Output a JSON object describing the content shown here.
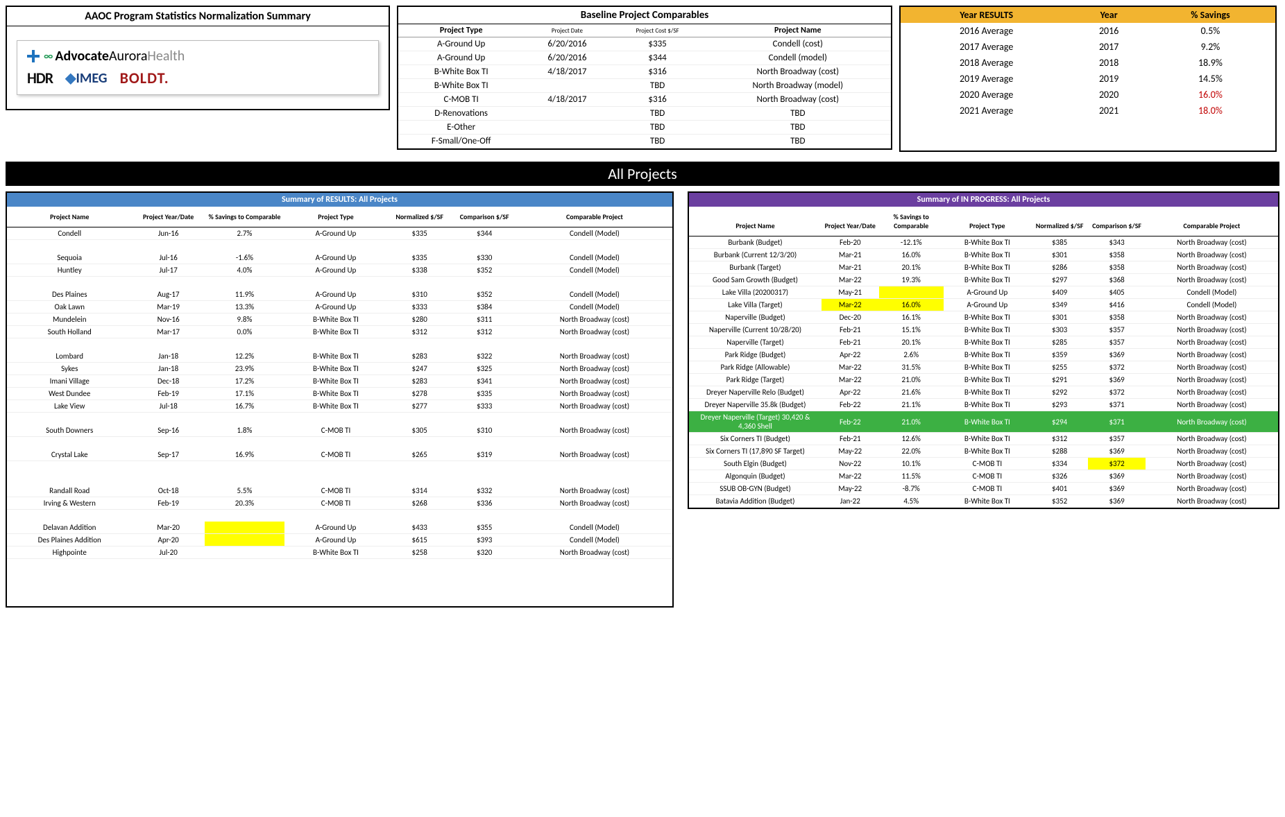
{
  "aaoc": {
    "title": "AAOC Program Statistics Normalization Summary",
    "logos": {
      "aah": "AdvocateAuroraHealth",
      "hdr": "HDR",
      "imeg": "IMEG",
      "boldt": "BOLDT."
    }
  },
  "baseline": {
    "title": "Baseline Project Comparables",
    "headers": [
      "Project Type",
      "Project Date",
      "Project Cost $/SF",
      "Project Name"
    ],
    "rows": [
      [
        "A-Ground Up",
        "6/20/2016",
        "$335",
        "Condell (cost)"
      ],
      [
        "A-Ground Up",
        "6/20/2016",
        "$344",
        "Condell (model)"
      ],
      [
        "B-White Box TI",
        "4/18/2017",
        "$316",
        "North Broadway (cost)"
      ],
      [
        "B-White Box TI",
        "",
        "TBD",
        "North Broadway (model)"
      ],
      [
        "C-MOB TI",
        "4/18/2017",
        "$316",
        "North Broadway (cost)"
      ],
      [
        "D-Renovations",
        "",
        "TBD",
        "TBD"
      ],
      [
        "E-Other",
        "",
        "TBD",
        "TBD"
      ],
      [
        "F-Small/One-Off",
        "",
        "TBD",
        "TBD"
      ]
    ]
  },
  "year": {
    "headers": [
      "Year RESULTS",
      "Year",
      "% Savings"
    ],
    "rows": [
      {
        "c": [
          "2016 Average",
          "2016",
          "0.5%"
        ],
        "red": false
      },
      {
        "c": [
          "2017 Average",
          "2017",
          "9.2%"
        ],
        "red": false
      },
      {
        "c": [
          "2018 Average",
          "2018",
          "18.9%"
        ],
        "red": false
      },
      {
        "c": [
          "2019 Average",
          "2019",
          "14.5%"
        ],
        "red": false
      },
      {
        "c": [
          "2020 Average",
          "2020",
          "16.0%"
        ],
        "red": true
      },
      {
        "c": [
          "2021 Average",
          "2021",
          "18.0%"
        ],
        "red": true
      }
    ]
  },
  "banner": "All Projects",
  "results": {
    "title": "Summary of RESULTS: All Projects",
    "headers": [
      "Project Name",
      "Project Year/Date",
      "% Savings to Comparable",
      "Project Type",
      "Normalized $/SF",
      "Comparison $/SF",
      "Comparable Project"
    ],
    "rows": [
      {
        "c": [
          "Condell",
          "Jun-16",
          "2.7%",
          "A-Ground Up",
          "$335",
          "$344",
          "Condell (Model)"
        ]
      },
      {
        "spacer": true
      },
      {
        "c": [
          "Sequoia",
          "Jul-16",
          "-1.6%",
          "A-Ground Up",
          "$335",
          "$330",
          "Condell (Model)"
        ]
      },
      {
        "c": [
          "Huntley",
          "Jul-17",
          "4.0%",
          "A-Ground Up",
          "$338",
          "$352",
          "Condell (Model)"
        ]
      },
      {
        "spacer": true
      },
      {
        "c": [
          "Des Plaines",
          "Aug-17",
          "11.9%",
          "A-Ground Up",
          "$310",
          "$352",
          "Condell (Model)"
        ]
      },
      {
        "c": [
          "Oak Lawn",
          "Mar-19",
          "13.3%",
          "A-Ground Up",
          "$333",
          "$384",
          "Condell (Model)"
        ]
      },
      {
        "c": [
          "Mundelein",
          "Nov-16",
          "9.8%",
          "B-White Box TI",
          "$280",
          "$311",
          "North Broadway (cost)"
        ]
      },
      {
        "c": [
          "South Holland",
          "Mar-17",
          "0.0%",
          "B-White Box TI",
          "$312",
          "$312",
          "North Broadway (cost)"
        ]
      },
      {
        "spacer": true
      },
      {
        "c": [
          "Lombard",
          "Jan-18",
          "12.2%",
          "B-White Box TI",
          "$283",
          "$322",
          "North Broadway (cost)"
        ]
      },
      {
        "c": [
          "Sykes",
          "Jan-18",
          "23.9%",
          "B-White Box TI",
          "$247",
          "$325",
          "North Broadway (cost)"
        ]
      },
      {
        "c": [
          "Imani Village",
          "Dec-18",
          "17.2%",
          "B-White Box TI",
          "$283",
          "$341",
          "North Broadway (cost)"
        ]
      },
      {
        "c": [
          "West Dundee",
          "Feb-19",
          "17.1%",
          "B-White Box TI",
          "$278",
          "$335",
          "North Broadway (cost)"
        ]
      },
      {
        "c": [
          "Lake View",
          "Jul-18",
          "16.7%",
          "B-White Box TI",
          "$277",
          "$333",
          "North Broadway (cost)"
        ]
      },
      {
        "spacer": true
      },
      {
        "c": [
          "South Downers",
          "Sep-16",
          "1.8%",
          "C-MOB TI",
          "$305",
          "$310",
          "North Broadway (cost)"
        ]
      },
      {
        "spacer": true
      },
      {
        "c": [
          "Crystal Lake",
          "Sep-17",
          "16.9%",
          "C-MOB TI",
          "$265",
          "$319",
          "North Broadway (cost)"
        ]
      },
      {
        "spacer": true
      },
      {
        "spacer": true
      },
      {
        "c": [
          "Randall Road",
          "Oct-18",
          "5.5%",
          "C-MOB TI",
          "$314",
          "$332",
          "North Broadway (cost)"
        ]
      },
      {
        "c": [
          "Irving & Western",
          "Feb-19",
          "20.3%",
          "C-MOB TI",
          "$268",
          "$336",
          "North Broadway (cost)"
        ]
      },
      {
        "spacer": true
      },
      {
        "c": [
          "Delavan Addition",
          "Mar-20",
          "",
          "A-Ground Up",
          "$433",
          "$355",
          "Condell (Model)"
        ],
        "hl": [
          2
        ]
      },
      {
        "c": [
          "Des Plaines Addition",
          "Apr-20",
          "",
          "A-Ground Up",
          "$615",
          "$393",
          "Condell (Model)"
        ],
        "hl": [
          2
        ]
      },
      {
        "c": [
          "Highpointe",
          "Jul-20",
          "",
          "B-White Box TI",
          "$258",
          "$320",
          "North Broadway (cost)"
        ]
      },
      {
        "spacer": true
      },
      {
        "spacer": true
      },
      {
        "spacer": true
      },
      {
        "spacer": true
      }
    ]
  },
  "inprogress": {
    "title": "Summary of IN PROGRESS: All Projects",
    "headers": [
      "Project Name",
      "Project Year/Date",
      "% Savings to Comparable",
      "Project Type",
      "Normalized $/SF",
      "Comparison $/SF",
      "Comparable Project"
    ],
    "rows": [
      {
        "c": [
          "Burbank (Budget)",
          "Feb-20",
          "-12.1%",
          "B-White Box TI",
          "$385",
          "$343",
          "North Broadway (cost)"
        ]
      },
      {
        "c": [
          "Burbank (Current 12/3/20)",
          "Mar-21",
          "16.0%",
          "B-White Box TI",
          "$301",
          "$358",
          "North Broadway (cost)"
        ]
      },
      {
        "c": [
          "Burbank (Target)",
          "Mar-21",
          "20.1%",
          "B-White Box TI",
          "$286",
          "$358",
          "North Broadway (cost)"
        ]
      },
      {
        "c": [
          "Good Sam Growth (Budget)",
          "Mar-22",
          "19.3%",
          "B-White Box TI",
          "$297",
          "$368",
          "North Broadway (cost)"
        ]
      },
      {
        "c": [
          "Lake Villa (20200317)",
          "May-21",
          "",
          "A-Ground Up",
          "$409",
          "$405",
          "Condell (Model)"
        ],
        "hl": [
          2
        ]
      },
      {
        "c": [
          "Lake Villa (Target)",
          "Mar-22",
          "16.0%",
          "A-Ground Up",
          "$349",
          "$416",
          "Condell (Model)"
        ],
        "hl": [
          1,
          2
        ]
      },
      {
        "c": [
          "Naperville (Budget)",
          "Dec-20",
          "16.1%",
          "B-White Box TI",
          "$301",
          "$358",
          "North Broadway (cost)"
        ]
      },
      {
        "c": [
          "Naperville (Current 10/28/20)",
          "Feb-21",
          "15.1%",
          "B-White Box TI",
          "$303",
          "$357",
          "North Broadway (cost)"
        ]
      },
      {
        "c": [
          "Naperville (Target)",
          "Feb-21",
          "20.1%",
          "B-White Box TI",
          "$285",
          "$357",
          "North Broadway (cost)"
        ]
      },
      {
        "c": [
          "Park Ridge (Budget)",
          "Apr-22",
          "2.6%",
          "B-White Box TI",
          "$359",
          "$369",
          "North Broadway (cost)"
        ]
      },
      {
        "c": [
          "Park Ridge (Allowable)",
          "Mar-22",
          "31.5%",
          "B-White Box TI",
          "$255",
          "$372",
          "North Broadway (cost)"
        ]
      },
      {
        "c": [
          "Park Ridge (Target)",
          "Mar-22",
          "21.0%",
          "B-White Box TI",
          "$291",
          "$369",
          "North Broadway (cost)"
        ]
      },
      {
        "c": [
          "Dreyer Naperville Relo (Budget)",
          "Apr-22",
          "21.6%",
          "B-White Box TI",
          "$292",
          "$372",
          "North Broadway (cost)"
        ]
      },
      {
        "c": [
          "Dreyer Naperville 35.8k (Budget)",
          "Feb-22",
          "21.1%",
          "B-White Box TI",
          "$293",
          "$371",
          "North Broadway (cost)"
        ]
      },
      {
        "c": [
          "Dreyer Naperville (Target) 30,420 & 4,360 Shell",
          "Feb-22",
          "21.0%",
          "B-White Box TI",
          "$294",
          "$371",
          "North Broadway (cost)"
        ],
        "rowclass": "hl-green"
      },
      {
        "c": [
          "Six Corners TI (Budget)",
          "Feb-21",
          "12.6%",
          "B-White Box TI",
          "$312",
          "$357",
          "North Broadway (cost)"
        ]
      },
      {
        "c": [
          "Six Corners TI (17,890 SF Target)",
          "May-22",
          "22.0%",
          "B-White Box TI",
          "$288",
          "$369",
          "North Broadway (cost)"
        ]
      },
      {
        "c": [
          "South Elgin (Budget)",
          "Nov-22",
          "10.1%",
          "C-MOB TI",
          "$334",
          "$372",
          "North Broadway (cost)"
        ],
        "hl": [
          5
        ]
      },
      {
        "c": [
          "Algonquin (Budget)",
          "Mar-22",
          "11.5%",
          "C-MOB TI",
          "$326",
          "$369",
          "North Broadway (cost)"
        ]
      },
      {
        "c": [
          "SSUB OB-GYN (Budget)",
          "May-22",
          "-8.7%",
          "C-MOB TI",
          "$401",
          "$369",
          "North Broadway (cost)"
        ]
      },
      {
        "c": [
          "Batavia Addition (Budget)",
          "Jan-22",
          "4.5%",
          "B-White Box TI",
          "$352",
          "$369",
          "North Broadway (cost)"
        ]
      }
    ]
  }
}
